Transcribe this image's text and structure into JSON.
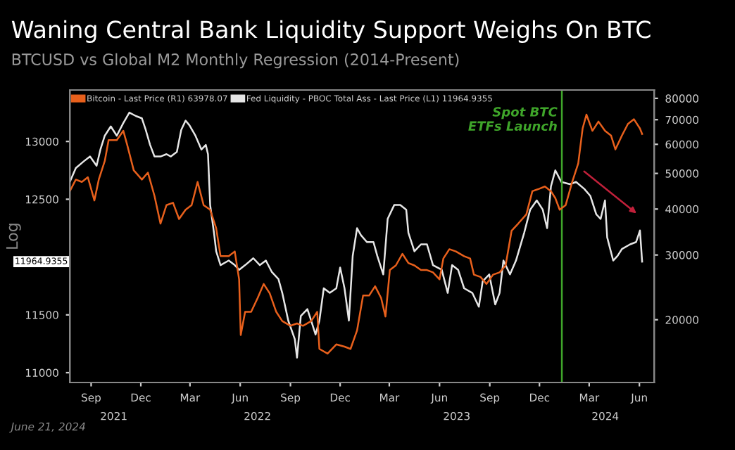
{
  "chart_data": {
    "type": "line",
    "title": "Waning Central Bank Liquidity Support Weighs On BTC",
    "subtitle": "BTCUSD vs Global M2 Monthly Regression (2014-Present)",
    "ylabel": "Log",
    "xlim": [
      "2021-07-24",
      "2024-06-28"
    ],
    "xticks": [
      {
        "value": "2021-09-01",
        "label": "Sep"
      },
      {
        "value": "2021-12-01",
        "label": "Dec"
      },
      {
        "value": "2022-03-01",
        "label": "Mar"
      },
      {
        "value": "2022-06-01",
        "label": "Jun"
      },
      {
        "value": "2022-09-01",
        "label": "Sep"
      },
      {
        "value": "2022-12-01",
        "label": "Dec"
      },
      {
        "value": "2023-03-01",
        "label": "Mar"
      },
      {
        "value": "2023-06-01",
        "label": "Jun"
      },
      {
        "value": "2023-09-01",
        "label": "Sep"
      },
      {
        "value": "2023-12-01",
        "label": "Dec"
      },
      {
        "value": "2024-03-01",
        "label": "Mar"
      },
      {
        "value": "2024-06-01",
        "label": "Jun"
      }
    ],
    "ylim": [
      10915,
      13445
    ],
    "yticks": [
      11000,
      11500,
      {
        "value": 12000,
        "label": null
      },
      12500,
      13000
    ],
    "y2lim": [
      13500,
      84300
    ],
    "y2ticks": [
      20000,
      30000,
      40000,
      50000,
      60000,
      70000,
      80000
    ],
    "log": "y2",
    "grid": false,
    "legend": "top left",
    "ref_lines": [
      {
        "axis": "x",
        "value": "2024-01-11",
        "label": "Spot BTC\nETFs Launch",
        "color": "#3fa52a"
      }
    ],
    "annotations": [
      "2021",
      "2022",
      "2023",
      "2024",
      "11964.9355",
      "June 21, 2024"
    ],
    "series": [
      {
        "name": "Bitcoin - Last Price (R1) 63978.07",
        "color": "#e8601c",
        "axis": "y2",
        "x": [
          "2021-07-24",
          "2021-08-04",
          "2021-08-15",
          "2021-08-26",
          "2021-09-07",
          "2021-09-15",
          "2021-09-26",
          "2021-10-03",
          "2021-10-18",
          "2021-10-30",
          "2021-11-06",
          "2021-11-18",
          "2021-12-03",
          "2021-12-14",
          "2021-12-26",
          "2022-01-06",
          "2022-01-17",
          "2022-01-29",
          "2022-02-09",
          "2022-02-21",
          "2022-03-04",
          "2022-03-15",
          "2022-03-26",
          "2022-04-07",
          "2022-04-18",
          "2022-04-26",
          "2022-05-11",
          "2022-05-22",
          "2022-05-30",
          "2022-06-02",
          "2022-06-10",
          "2022-06-21",
          "2022-07-03",
          "2022-07-14",
          "2022-07-25",
          "2022-08-06",
          "2022-08-17",
          "2022-09-01",
          "2022-09-13",
          "2022-09-24",
          "2022-10-09",
          "2022-10-20",
          "2022-10-24",
          "2022-11-08",
          "2022-11-24",
          "2022-12-09",
          "2022-12-20",
          "2023-01-01",
          "2023-01-12",
          "2023-01-23",
          "2023-02-03",
          "2023-02-14",
          "2023-02-22",
          "2023-03-02",
          "2023-03-13",
          "2023-03-25",
          "2023-04-05",
          "2023-04-16",
          "2023-04-28",
          "2023-05-09",
          "2023-05-20",
          "2023-06-01",
          "2023-06-08",
          "2023-06-19",
          "2023-07-01",
          "2023-07-16",
          "2023-07-27",
          "2023-08-03",
          "2023-08-15",
          "2023-08-26",
          "2023-09-07",
          "2023-09-19",
          "2023-09-30",
          "2023-10-11",
          "2023-10-23",
          "2023-11-07",
          "2023-11-18",
          "2023-11-30",
          "2023-12-11",
          "2023-12-22",
          "2023-12-30",
          "2024-01-07",
          "2024-01-18",
          "2024-01-30",
          "2024-02-10",
          "2024-02-18",
          "2024-02-25",
          "2024-03-07",
          "2024-03-18",
          "2024-03-30",
          "2024-04-10",
          "2024-04-18",
          "2024-04-30",
          "2024-05-11",
          "2024-05-22",
          "2024-06-02",
          "2024-06-06"
        ],
        "values": [
          44730,
          48100,
          47410,
          48810,
          42210,
          48100,
          54040,
          61590,
          61590,
          65280,
          59830,
          50990,
          48100,
          50250,
          43450,
          36510,
          41000,
          41600,
          37580,
          39830,
          41000,
          47410,
          41000,
          39830,
          35460,
          29780,
          29780,
          30670,
          25750,
          18170,
          21010,
          21010,
          22920,
          25020,
          23600,
          21010,
          19830,
          19260,
          19540,
          19260,
          19830,
          21010,
          16660,
          16180,
          17140,
          16900,
          16660,
          18710,
          23270,
          23270,
          24660,
          22920,
          20410,
          27300,
          28100,
          30220,
          28520,
          28100,
          27300,
          27300,
          26910,
          25750,
          29350,
          31110,
          30670,
          29780,
          29350,
          26520,
          26140,
          25020,
          26520,
          26910,
          28100,
          34940,
          36510,
          38690,
          44730,
          45390,
          46060,
          44730,
          42830,
          39830,
          41000,
          47410,
          53260,
          66230,
          72270,
          65280,
          69180,
          65280,
          63400,
          58110,
          63400,
          68180,
          70200,
          66230,
          63980
        ]
      },
      {
        "name": "Fed Liquidity - PBOC Total Ass - Last Price (L1) 11964.9355",
        "color": "#e6e6e6",
        "x": [
          "2021-07-24",
          "2021-08-04",
          "2021-08-19",
          "2021-08-30",
          "2021-09-11",
          "2021-09-18",
          "2021-09-26",
          "2021-10-07",
          "2021-10-18",
          "2021-10-30",
          "2021-11-10",
          "2021-11-22",
          "2021-12-03",
          "2021-12-10",
          "2021-12-18",
          "2021-12-26",
          "2022-01-06",
          "2022-01-17",
          "2022-01-25",
          "2022-02-05",
          "2022-02-13",
          "2022-02-21",
          "2022-02-28",
          "2022-03-11",
          "2022-03-22",
          "2022-03-30",
          "2022-04-03",
          "2022-04-07",
          "2022-04-14",
          "2022-04-18",
          "2022-04-26",
          "2022-05-11",
          "2022-05-22",
          "2022-05-30",
          "2022-06-10",
          "2022-06-25",
          "2022-07-07",
          "2022-07-18",
          "2022-07-29",
          "2022-08-10",
          "2022-08-17",
          "2022-08-28",
          "2022-09-09",
          "2022-09-13",
          "2022-09-20",
          "2022-10-02",
          "2022-10-09",
          "2022-10-17",
          "2022-10-24",
          "2022-11-01",
          "2022-11-12",
          "2022-11-24",
          "2022-12-01",
          "2022-12-09",
          "2022-12-17",
          "2022-12-24",
          "2023-01-01",
          "2023-01-08",
          "2023-01-19",
          "2023-01-31",
          "2023-02-07",
          "2023-02-18",
          "2023-02-26",
          "2023-03-10",
          "2023-03-21",
          "2023-04-01",
          "2023-04-05",
          "2023-04-16",
          "2023-04-28",
          "2023-05-09",
          "2023-05-20",
          "2023-06-05",
          "2023-06-16",
          "2023-06-24",
          "2023-07-05",
          "2023-07-16",
          "2023-07-31",
          "2023-08-12",
          "2023-08-19",
          "2023-08-31",
          "2023-09-11",
          "2023-09-19",
          "2023-09-26",
          "2023-10-08",
          "2023-10-19",
          "2023-11-03",
          "2023-11-14",
          "2023-11-26",
          "2023-12-07",
          "2023-12-15",
          "2023-12-22",
          "2023-12-30",
          "2024-01-10",
          "2024-01-26",
          "2024-02-06",
          "2024-02-21",
          "2024-03-03",
          "2024-03-14",
          "2024-03-22",
          "2024-03-30",
          "2024-04-03",
          "2024-04-14",
          "2024-04-22",
          "2024-04-30",
          "2024-05-15",
          "2024-05-26",
          "2024-06-02",
          "2024-06-06"
        ],
        "values": [
          12650,
          12770,
          12830,
          12870,
          12790,
          12930,
          13050,
          13130,
          13050,
          13160,
          13250,
          13220,
          13200,
          13100,
          12970,
          12870,
          12870,
          12890,
          12870,
          12910,
          13100,
          13180,
          13140,
          13050,
          12930,
          12970,
          12890,
          12450,
          12210,
          12050,
          11930,
          11970,
          11930,
          11890,
          11930,
          11990,
          11930,
          11970,
          11870,
          11810,
          11690,
          11450,
          11290,
          11130,
          11490,
          11550,
          11450,
          11330,
          11450,
          11730,
          11690,
          11730,
          11910,
          11730,
          11450,
          12010,
          12250,
          12190,
          12130,
          12130,
          12010,
          11850,
          12330,
          12450,
          12450,
          12410,
          12210,
          12050,
          12110,
          12110,
          11930,
          11890,
          11690,
          11930,
          11890,
          11730,
          11690,
          11570,
          11790,
          11850,
          11590,
          11690,
          11970,
          11850,
          11970,
          12210,
          12410,
          12490,
          12410,
          12250,
          12610,
          12750,
          12650,
          12630,
          12650,
          12590,
          12530,
          12370,
          12330,
          12490,
          12170,
          11970,
          12010,
          12070,
          12110,
          12130,
          12230,
          11960
        ]
      }
    ]
  }
}
